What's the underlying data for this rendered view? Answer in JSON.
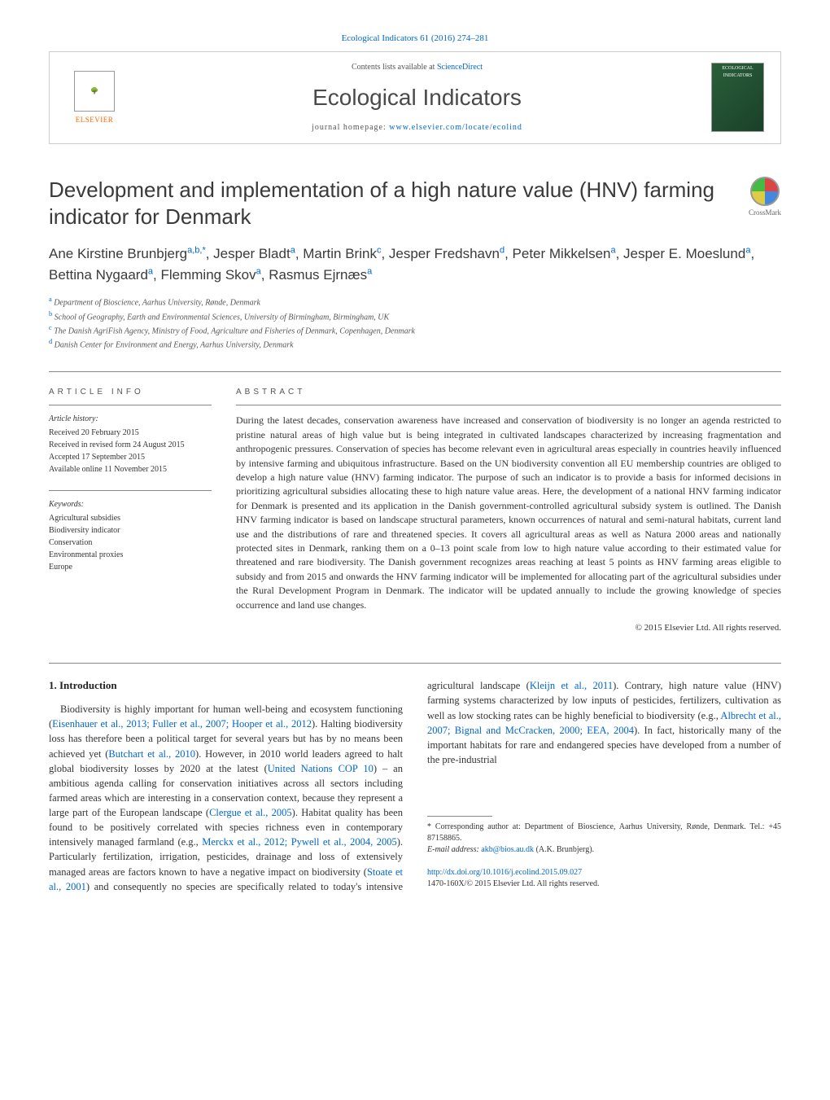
{
  "header": {
    "citation": "Ecological Indicators 61 (2016) 274–281",
    "contents_label": "Contents lists available at ",
    "contents_link": "ScienceDirect",
    "journal_name": "Ecological Indicators",
    "homepage_label": "journal homepage: ",
    "homepage_link": "www.elsevier.com/locate/ecolind",
    "publisher": "ELSEVIER",
    "cover_label": "ECOLOGICAL INDICATORS"
  },
  "crossmark": "CrossMark",
  "article": {
    "title": "Development and implementation of a high nature value (HNV) farming indicator for Denmark",
    "authors_html": "Ane Kirstine Brunbjerg<sup>a,b,*</sup>, Jesper Bladt<sup>a</sup>, Martin Brink<sup>c</sup>, Jesper Fredshavn<sup>d</sup>, Peter Mikkelsen<sup>a</sup>, Jesper E. Moeslund<sup>a</sup>, Bettina Nygaard<sup>a</sup>, Flemming Skov<sup>a</sup>, Rasmus Ejrnæs<sup>a</sup>",
    "affiliations": [
      {
        "sup": "a",
        "text": "Department of Bioscience, Aarhus University, Rønde, Denmark"
      },
      {
        "sup": "b",
        "text": "School of Geography, Earth and Environmental Sciences, University of Birmingham, Birmingham, UK"
      },
      {
        "sup": "c",
        "text": "The Danish AgriFish Agency, Ministry of Food, Agriculture and Fisheries of Denmark, Copenhagen, Denmark"
      },
      {
        "sup": "d",
        "text": "Danish Center for Environment and Energy, Aarhus University, Denmark"
      }
    ]
  },
  "info": {
    "heading": "article info",
    "history_label": "Article history:",
    "history": [
      "Received 20 February 2015",
      "Received in revised form 24 August 2015",
      "Accepted 17 September 2015",
      "Available online 11 November 2015"
    ],
    "keywords_label": "Keywords:",
    "keywords": [
      "Agricultural subsidies",
      "Biodiversity indicator",
      "Conservation",
      "Environmental proxies",
      "Europe"
    ]
  },
  "abstract": {
    "heading": "abstract",
    "text": "During the latest decades, conservation awareness have increased and conservation of biodiversity is no longer an agenda restricted to pristine natural areas of high value but is being integrated in cultivated landscapes characterized by increasing fragmentation and anthropogenic pressures. Conservation of species has become relevant even in agricultural areas especially in countries heavily influenced by intensive farming and ubiquitous infrastructure. Based on the UN biodiversity convention all EU membership countries are obliged to develop a high nature value (HNV) farming indicator. The purpose of such an indicator is to provide a basis for informed decisions in prioritizing agricultural subsidies allocating these to high nature value areas. Here, the development of a national HNV farming indicator for Denmark is presented and its application in the Danish government-controlled agricultural subsidy system is outlined. The Danish HNV farming indicator is based on landscape structural parameters, known occurrences of natural and semi-natural habitats, current land use and the distributions of rare and threatened species. It covers all agricultural areas as well as Natura 2000 areas and nationally protected sites in Denmark, ranking them on a 0–13 point scale from low to high nature value according to their estimated value for threatened and rare biodiversity. The Danish government recognizes areas reaching at least 5 points as HNV farming areas eligible to subsidy and from 2015 and onwards the HNV farming indicator will be implemented for allocating part of the agricultural subsidies under the Rural Development Program in Denmark. The indicator will be updated annually to include the growing knowledge of species occurrence and land use changes.",
    "copyright": "© 2015 Elsevier Ltd. All rights reserved."
  },
  "body": {
    "section_title": "1. Introduction",
    "col1_p1_a": "Biodiversity is highly important for human well-being and ecosystem functioning (",
    "col1_p1_link1": "Eisenhauer et al., 2013; Fuller et al., 2007; Hooper et al., 2012",
    "col1_p1_b": "). Halting biodiversity loss has therefore been a political target for several years but has by no means been achieved yet (",
    "col1_p1_link2": "Butchart et al., 2010",
    "col1_p1_c": "). However, in 2010 world leaders agreed to halt global biodiversity losses by 2020 at the latest (",
    "col1_p1_link3": "United Nations COP 10",
    "col1_p1_d": ") – an ambitious agenda calling for conservation initiatives across all sectors including farmed areas which are",
    "col2_a": "interesting in a conservation context, because they represent a large part of the European landscape (",
    "col2_link1": "Clergue et al., 2005",
    "col2_b": "). Habitat quality has been found to be positively correlated with species richness even in contemporary intensively managed farmland (e.g., ",
    "col2_link2": "Merckx et al., 2012; Pywell et al., 2004, 2005",
    "col2_c": "). Particularly fertilization, irrigation, pesticides, drainage and loss of extensively managed areas are factors known to have a negative impact on biodiversity (",
    "col2_link3": "Stoate et al., 2001",
    "col2_d": ") and consequently no species are specifically related to today's intensive agricultural landscape (",
    "col2_link4": "Kleijn et al., 2011",
    "col2_e": "). Contrary, high nature value (HNV) farming systems characterized by low inputs of pesticides, fertilizers, cultivation as well as low stocking rates can be highly beneficial to biodiversity (e.g., ",
    "col2_link5": "Albrecht et al., 2007; Bignal and McCracken, 2000; EEA, 2004",
    "col2_f": "). In fact, historically many of the important habitats for rare and endangered species have developed from a number of the pre-industrial"
  },
  "footnotes": {
    "corresponding": "* Corresponding author at: Department of Bioscience, Aarhus University, Rønde, Denmark. Tel.: +45 87158865.",
    "email_label": "E-mail address: ",
    "email": "akb@bios.au.dk",
    "email_name": " (A.K. Brunbjerg)."
  },
  "footer": {
    "doi": "http://dx.doi.org/10.1016/j.ecolind.2015.09.027",
    "issn_line": "1470-160X/© 2015 Elsevier Ltd. All rights reserved."
  },
  "colors": {
    "link": "#0066cc",
    "accent": "#ff6600",
    "text": "#333333",
    "border": "#888888"
  }
}
